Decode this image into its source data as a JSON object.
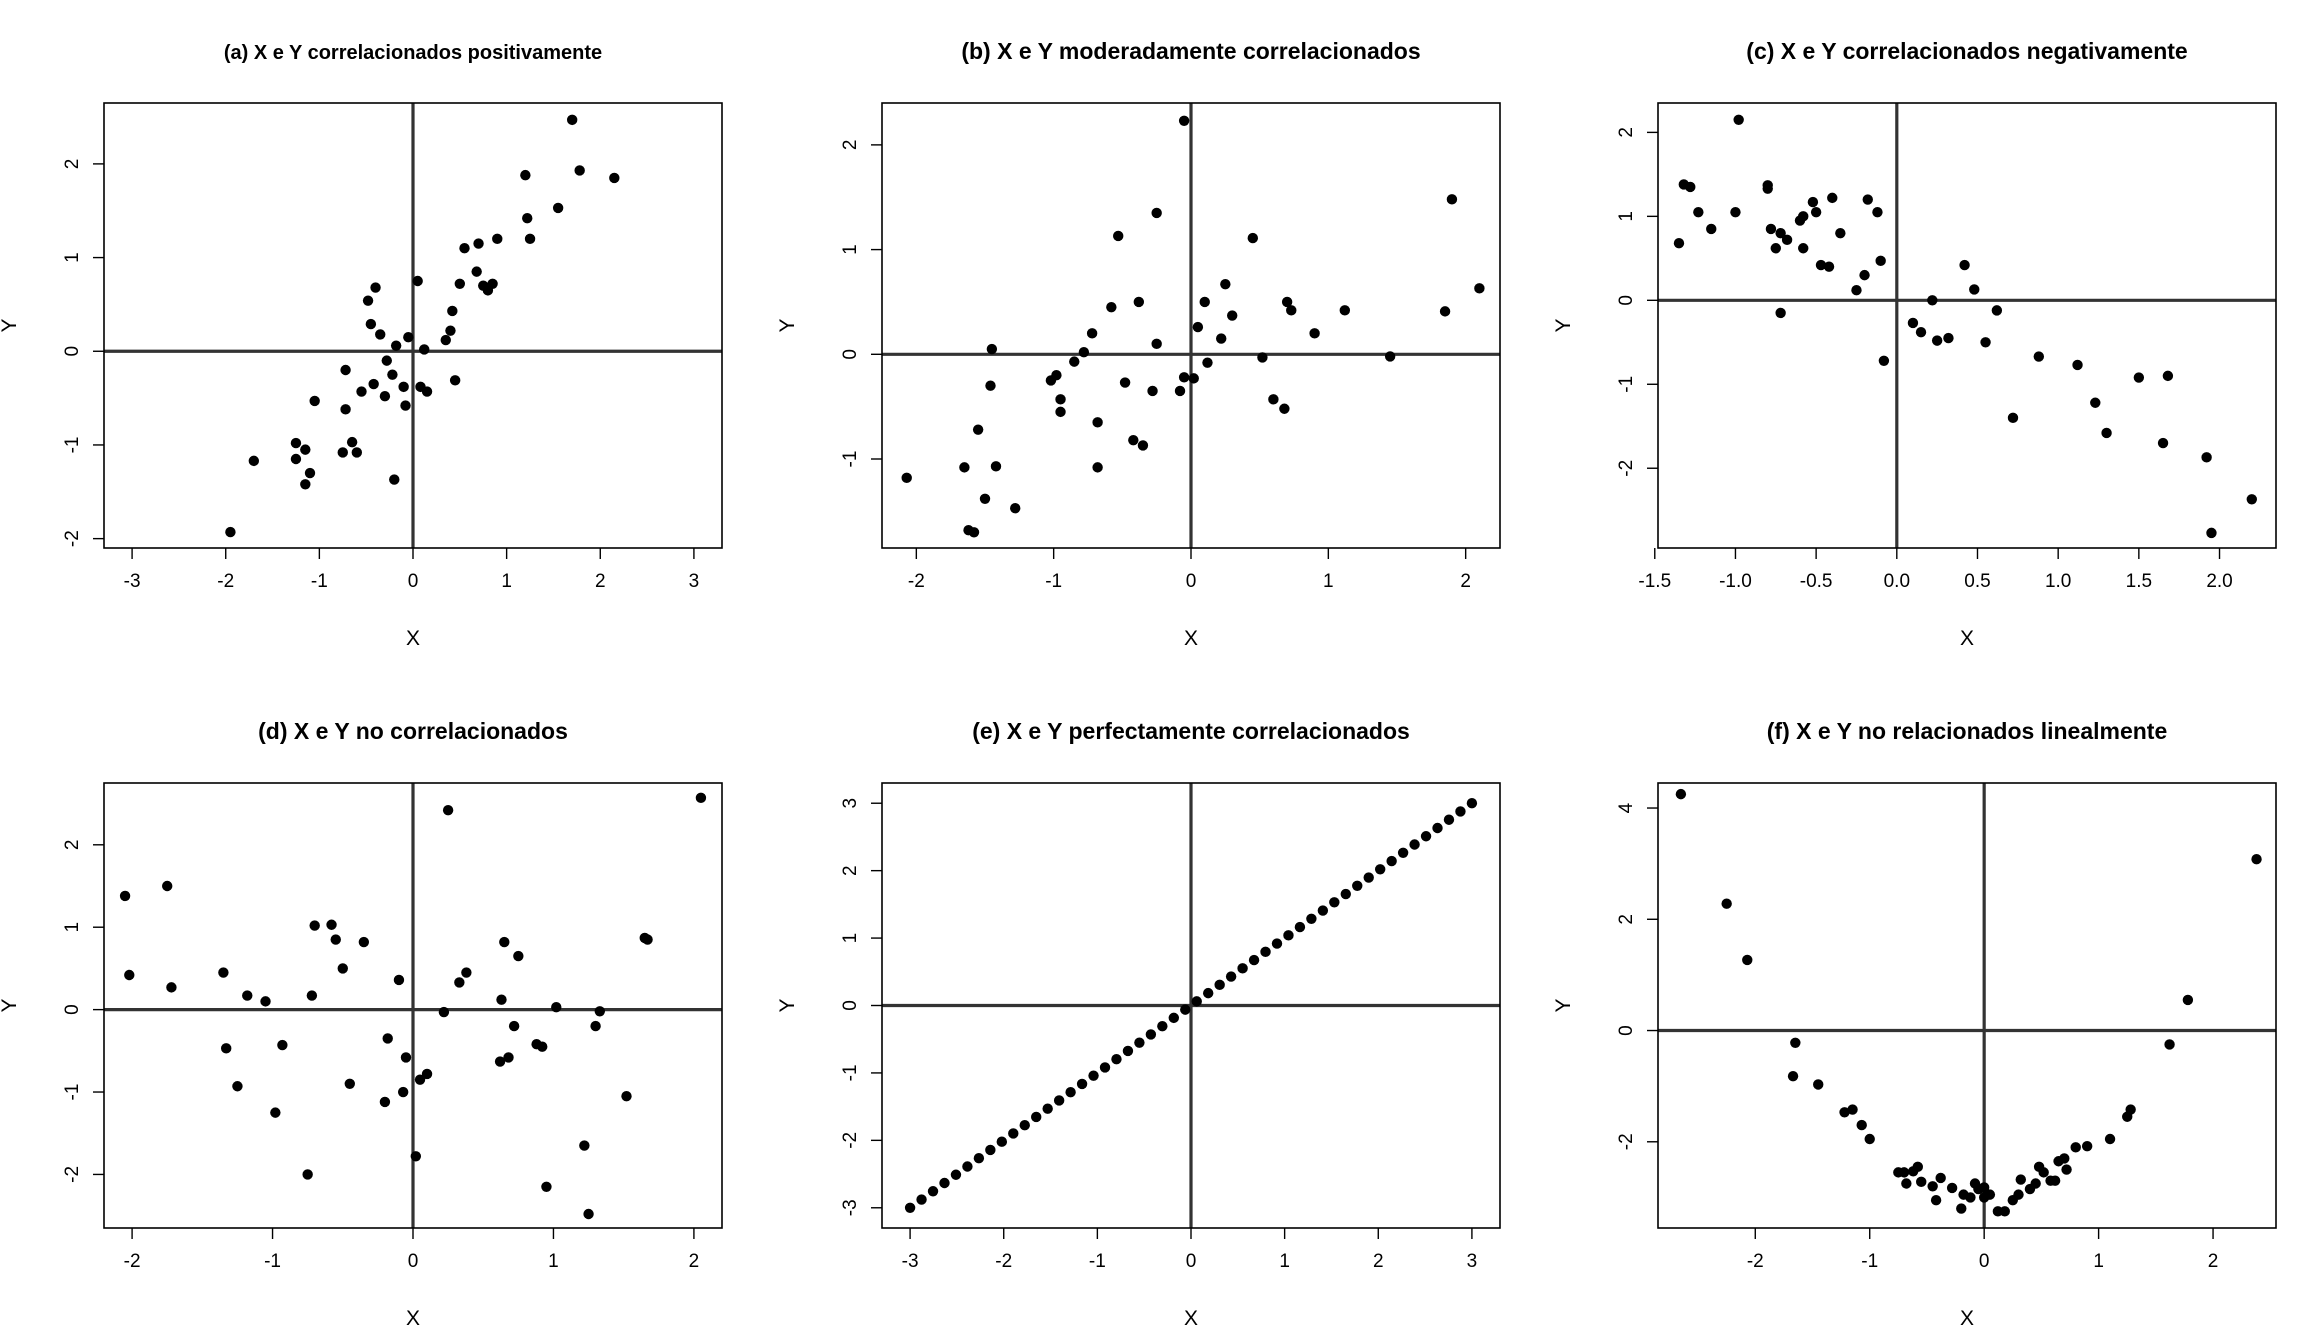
{
  "colors": {
    "points": "#000000",
    "zero_lines": "#333333",
    "frame": "#000000",
    "background": "#ffffff"
  },
  "chart_data": [
    {
      "type": "scatter",
      "title": "(a) X e Y correlacionados positivamente",
      "xlabel": "X",
      "ylabel": "Y",
      "xlim": [
        -3.3,
        3.3
      ],
      "ylim": [
        -2.1,
        2.65
      ],
      "xticks": [
        "-3",
        "-2",
        "-1",
        "0",
        "1",
        "2",
        "3"
      ],
      "yticks": [
        "-2",
        "-1",
        "0",
        "1",
        "2"
      ],
      "reference_lines": {
        "x": 0,
        "y": 0
      },
      "grid": false,
      "points": [
        [
          -1.95,
          -1.93
        ],
        [
          -1.7,
          -1.17
        ],
        [
          -1.25,
          -0.98
        ],
        [
          -1.25,
          -1.15
        ],
        [
          -1.15,
          -1.05
        ],
        [
          -1.15,
          -1.42
        ],
        [
          -1.1,
          -1.3
        ],
        [
          -1.05,
          -0.53
        ],
        [
          -0.75,
          -1.08
        ],
        [
          -0.72,
          -0.2
        ],
        [
          -0.72,
          -0.62
        ],
        [
          -0.65,
          -0.97
        ],
        [
          -0.6,
          -1.08
        ],
        [
          -0.55,
          -0.43
        ],
        [
          -0.48,
          0.54
        ],
        [
          -0.45,
          0.29
        ],
        [
          -0.42,
          -0.35
        ],
        [
          -0.4,
          0.68
        ],
        [
          -0.35,
          0.18
        ],
        [
          -0.3,
          -0.48
        ],
        [
          -0.28,
          -0.1
        ],
        [
          -0.22,
          -0.25
        ],
        [
          -0.2,
          -1.37
        ],
        [
          -0.18,
          0.06
        ],
        [
          -0.1,
          -0.38
        ],
        [
          -0.08,
          -0.58
        ],
        [
          -0.05,
          0.15
        ],
        [
          0.05,
          0.75
        ],
        [
          0.08,
          -0.38
        ],
        [
          0.12,
          0.02
        ],
        [
          0.15,
          -0.43
        ],
        [
          0.35,
          0.12
        ],
        [
          0.4,
          0.22
        ],
        [
          0.42,
          0.43
        ],
        [
          0.45,
          -0.31
        ],
        [
          0.5,
          0.72
        ],
        [
          0.55,
          1.1
        ],
        [
          0.68,
          0.85
        ],
        [
          0.7,
          1.15
        ],
        [
          0.75,
          0.7
        ],
        [
          0.8,
          0.65
        ],
        [
          0.85,
          0.72
        ],
        [
          0.9,
          1.2
        ],
        [
          1.2,
          1.88
        ],
        [
          1.22,
          1.42
        ],
        [
          1.25,
          1.2
        ],
        [
          1.55,
          1.53
        ],
        [
          1.7,
          2.47
        ],
        [
          1.78,
          1.93
        ],
        [
          2.15,
          1.85
        ]
      ]
    },
    {
      "type": "scatter",
      "title": "(b) X e Y moderadamente correlacionados",
      "xlabel": "X",
      "ylabel": "Y",
      "xlim": [
        -2.25,
        2.25
      ],
      "ylim": [
        -1.85,
        2.4
      ],
      "xticks": [
        "-2",
        "-1",
        "0",
        "1",
        "2"
      ],
      "yticks": [
        "-1",
        "0",
        "1",
        "2"
      ],
      "reference_lines": {
        "x": 0,
        "y": 0
      },
      "grid": false,
      "points": [
        [
          -2.07,
          -1.18
        ],
        [
          -1.65,
          -1.08
        ],
        [
          -1.62,
          -1.68
        ],
        [
          -1.58,
          -1.7
        ],
        [
          -1.55,
          -0.72
        ],
        [
          -1.5,
          -1.38
        ],
        [
          -1.46,
          -0.3
        ],
        [
          -1.45,
          0.05
        ],
        [
          -1.42,
          -1.07
        ],
        [
          -1.28,
          -1.47
        ],
        [
          -1.02,
          -0.25
        ],
        [
          -0.98,
          -0.2
        ],
        [
          -0.95,
          -0.55
        ],
        [
          -0.95,
          -0.43
        ],
        [
          -0.85,
          -0.07
        ],
        [
          -0.78,
          0.02
        ],
        [
          -0.72,
          0.2
        ],
        [
          -0.68,
          -0.65
        ],
        [
          -0.68,
          -1.08
        ],
        [
          -0.58,
          0.45
        ],
        [
          -0.53,
          1.13
        ],
        [
          -0.48,
          -0.27
        ],
        [
          -0.42,
          -0.82
        ],
        [
          -0.38,
          0.5
        ],
        [
          -0.35,
          -0.87
        ],
        [
          -0.28,
          -0.35
        ],
        [
          -0.25,
          1.35
        ],
        [
          -0.25,
          0.1
        ],
        [
          -0.08,
          -0.35
        ],
        [
          -0.05,
          2.23
        ],
        [
          -0.05,
          -0.22
        ],
        [
          0.02,
          -0.23
        ],
        [
          0.05,
          0.26
        ],
        [
          0.1,
          0.5
        ],
        [
          0.12,
          -0.08
        ],
        [
          0.22,
          0.15
        ],
        [
          0.25,
          0.67
        ],
        [
          0.3,
          0.37
        ],
        [
          0.45,
          1.11
        ],
        [
          0.52,
          -0.03
        ],
        [
          0.6,
          -0.43
        ],
        [
          0.68,
          -0.52
        ],
        [
          0.7,
          0.5
        ],
        [
          0.73,
          0.42
        ],
        [
          0.9,
          0.2
        ],
        [
          1.12,
          0.42
        ],
        [
          1.45,
          -0.02
        ],
        [
          1.85,
          0.41
        ],
        [
          1.9,
          1.48
        ],
        [
          2.1,
          0.63
        ]
      ]
    },
    {
      "type": "scatter",
      "title": "(c) X e Y correlacionados negativamente",
      "xlabel": "X",
      "ylabel": "Y",
      "xlim": [
        -1.48,
        2.35
      ],
      "ylim": [
        -2.95,
        2.35
      ],
      "xticks": [
        "-1.5",
        "-1.0",
        "-0.5",
        "0.0",
        "0.5",
        "1.0",
        "1.5",
        "2.0"
      ],
      "yticks": [
        "-2",
        "-1",
        "0",
        "1",
        "2"
      ],
      "reference_lines": {
        "x": 0,
        "y": 0
      },
      "grid": false,
      "points": [
        [
          -1.35,
          0.68
        ],
        [
          -1.32,
          1.38
        ],
        [
          -1.28,
          1.35
        ],
        [
          -1.23,
          1.05
        ],
        [
          -1.15,
          0.85
        ],
        [
          -1.0,
          1.05
        ],
        [
          -0.98,
          2.15
        ],
        [
          -0.8,
          1.37
        ],
        [
          -0.8,
          1.33
        ],
        [
          -0.78,
          0.85
        ],
        [
          -0.75,
          0.62
        ],
        [
          -0.72,
          0.8
        ],
        [
          -0.72,
          -0.15
        ],
        [
          -0.68,
          0.72
        ],
        [
          -0.6,
          0.95
        ],
        [
          -0.58,
          1.0
        ],
        [
          -0.58,
          0.62
        ],
        [
          -0.52,
          1.17
        ],
        [
          -0.5,
          1.05
        ],
        [
          -0.47,
          0.42
        ],
        [
          -0.42,
          0.4
        ],
        [
          -0.4,
          1.22
        ],
        [
          -0.35,
          0.8
        ],
        [
          -0.25,
          0.12
        ],
        [
          -0.2,
          0.3
        ],
        [
          -0.18,
          1.2
        ],
        [
          -0.12,
          1.05
        ],
        [
          -0.1,
          0.47
        ],
        [
          -0.08,
          -0.72
        ],
        [
          0.1,
          -0.27
        ],
        [
          0.15,
          -0.38
        ],
        [
          0.22,
          0.0
        ],
        [
          0.25,
          -0.48
        ],
        [
          0.32,
          -0.45
        ],
        [
          0.42,
          0.42
        ],
        [
          0.48,
          0.13
        ],
        [
          0.55,
          -0.5
        ],
        [
          0.62,
          -0.12
        ],
        [
          0.72,
          -1.4
        ],
        [
          0.88,
          -0.67
        ],
        [
          1.12,
          -0.77
        ],
        [
          1.23,
          -1.22
        ],
        [
          1.3,
          -1.58
        ],
        [
          1.5,
          -0.92
        ],
        [
          1.65,
          -1.7
        ],
        [
          1.68,
          -0.9
        ],
        [
          1.92,
          -1.87
        ],
        [
          1.95,
          -2.77
        ],
        [
          2.2,
          -2.37
        ]
      ]
    },
    {
      "type": "scatter",
      "title": "(d) X e Y no correlacionados",
      "xlabel": "X",
      "ylabel": "Y",
      "xlim": [
        -2.2,
        2.2
      ],
      "ylim": [
        -2.65,
        2.75
      ],
      "xticks": [
        "-2",
        "-1",
        "0",
        "1",
        "2"
      ],
      "yticks": [
        "-2",
        "-1",
        "0",
        "1",
        "2"
      ],
      "reference_lines": {
        "x": 0,
        "y": 0
      },
      "grid": false,
      "points": [
        [
          -2.05,
          1.38
        ],
        [
          -2.02,
          0.42
        ],
        [
          -1.75,
          1.5
        ],
        [
          -1.72,
          0.27
        ],
        [
          -1.35,
          0.45
        ],
        [
          -1.33,
          -0.47
        ],
        [
          -1.25,
          -0.93
        ],
        [
          -1.18,
          0.17
        ],
        [
          -1.05,
          0.1
        ],
        [
          -0.98,
          -1.25
        ],
        [
          -0.93,
          -0.43
        ],
        [
          -0.75,
          -2.0
        ],
        [
          -0.72,
          0.17
        ],
        [
          -0.7,
          1.02
        ],
        [
          -0.58,
          1.03
        ],
        [
          -0.55,
          0.85
        ],
        [
          -0.5,
          0.5
        ],
        [
          -0.45,
          -0.9
        ],
        [
          -0.35,
          0.82
        ],
        [
          -0.2,
          -1.12
        ],
        [
          -0.18,
          -0.35
        ],
        [
          -0.1,
          0.36
        ],
        [
          -0.07,
          -1.0
        ],
        [
          -0.05,
          -0.58
        ],
        [
          0.02,
          -1.78
        ],
        [
          0.05,
          -0.85
        ],
        [
          0.1,
          -0.78
        ],
        [
          0.22,
          -0.03
        ],
        [
          0.25,
          2.42
        ],
        [
          0.33,
          0.33
        ],
        [
          0.38,
          0.45
        ],
        [
          0.62,
          -0.63
        ],
        [
          0.63,
          0.12
        ],
        [
          0.65,
          0.82
        ],
        [
          0.68,
          -0.58
        ],
        [
          0.72,
          -0.2
        ],
        [
          0.75,
          0.65
        ],
        [
          0.88,
          -0.42
        ],
        [
          0.92,
          -0.45
        ],
        [
          0.95,
          -2.15
        ],
        [
          1.02,
          0.03
        ],
        [
          1.22,
          -1.65
        ],
        [
          1.25,
          -2.48
        ],
        [
          1.3,
          -0.2
        ],
        [
          1.33,
          -0.02
        ],
        [
          1.52,
          -1.05
        ],
        [
          1.65,
          0.87
        ],
        [
          1.67,
          0.85
        ],
        [
          2.05,
          2.57
        ]
      ]
    },
    {
      "type": "scatter",
      "title": "(e) X e Y perfectamente correlacionados",
      "xlabel": "X",
      "ylabel": "Y",
      "xlim": [
        -3.3,
        3.3
      ],
      "ylim": [
        -3.3,
        3.3
      ],
      "xticks": [
        "-3",
        "-2",
        "-1",
        "0",
        "1",
        "2",
        "3"
      ],
      "yticks": [
        "-3",
        "-2",
        "-1",
        "0",
        "1",
        "2",
        "3"
      ],
      "reference_lines": {
        "x": 0,
        "y": 0
      },
      "grid": false,
      "series_rule": "y = x for 50 equally spaced x from -3 to 3"
    },
    {
      "type": "scatter",
      "title": "(f) X e Y no relacionados linealmente",
      "xlabel": "X",
      "ylabel": "Y",
      "xlim": [
        -2.85,
        2.55
      ],
      "ylim": [
        -3.55,
        4.45
      ],
      "xticks": [
        "-2",
        "-1",
        "0",
        "1",
        "2"
      ],
      "yticks": [
        "-2",
        "0",
        "2",
        "4"
      ],
      "reference_lines": {
        "x": 0,
        "y": 0
      },
      "grid": false,
      "points": [
        [
          -2.65,
          4.25
        ],
        [
          -2.25,
          2.28
        ],
        [
          -2.07,
          1.27
        ],
        [
          -1.65,
          -0.22
        ],
        [
          -1.67,
          -0.82
        ],
        [
          -1.45,
          -0.97
        ],
        [
          -1.22,
          -1.47
        ],
        [
          -1.15,
          -1.42
        ],
        [
          -1.07,
          -1.7
        ],
        [
          -1.0,
          -1.95
        ],
        [
          -0.75,
          -2.55
        ],
        [
          -0.7,
          -2.55
        ],
        [
          -0.68,
          -2.75
        ],
        [
          -0.62,
          -2.53
        ],
        [
          -0.58,
          -2.45
        ],
        [
          -0.55,
          -2.72
        ],
        [
          -0.45,
          -2.8
        ],
        [
          -0.42,
          -3.05
        ],
        [
          -0.38,
          -2.65
        ],
        [
          -0.28,
          -2.83
        ],
        [
          -0.2,
          -3.2
        ],
        [
          -0.18,
          -2.95
        ],
        [
          -0.12,
          -3.0
        ],
        [
          -0.08,
          -2.75
        ],
        [
          -0.05,
          -2.85
        ],
        [
          0.0,
          -3.0
        ],
        [
          0.0,
          -2.82
        ],
        [
          0.05,
          -2.95
        ],
        [
          0.12,
          -3.25
        ],
        [
          0.18,
          -3.25
        ],
        [
          0.25,
          -3.05
        ],
        [
          0.3,
          -2.95
        ],
        [
          0.32,
          -2.68
        ],
        [
          0.4,
          -2.85
        ],
        [
          0.45,
          -2.75
        ],
        [
          0.48,
          -2.45
        ],
        [
          0.52,
          -2.55
        ],
        [
          0.58,
          -2.7
        ],
        [
          0.62,
          -2.7
        ],
        [
          0.65,
          -2.35
        ],
        [
          0.7,
          -2.3
        ],
        [
          0.72,
          -2.5
        ],
        [
          0.8,
          -2.1
        ],
        [
          0.9,
          -2.08
        ],
        [
          1.1,
          -1.95
        ],
        [
          1.25,
          -1.55
        ],
        [
          1.28,
          -1.42
        ],
        [
          1.62,
          -0.25
        ],
        [
          1.78,
          0.55
        ],
        [
          2.38,
          3.08
        ]
      ]
    }
  ]
}
